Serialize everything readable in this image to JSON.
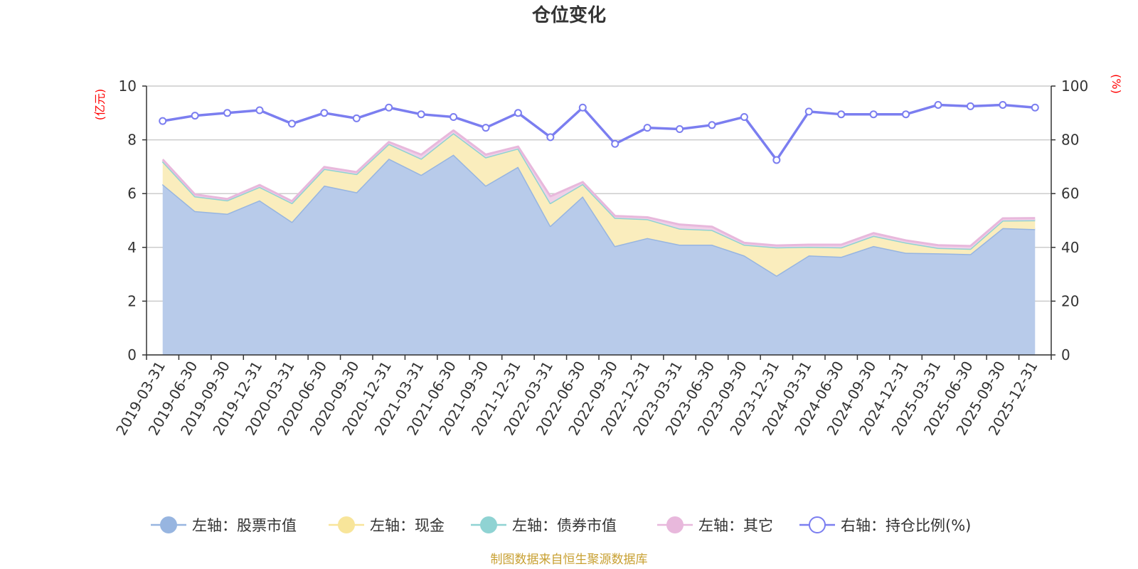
{
  "chart_data": {
    "type": "area",
    "title": "仓位变化",
    "source": "制图数据来自恒生聚源数据库",
    "left_axis": {
      "unit": "(亿元)",
      "min": 0,
      "max": 10,
      "ticks": [
        0,
        2,
        4,
        6,
        8,
        10
      ]
    },
    "right_axis": {
      "unit": "(%)",
      "min": 0,
      "max": 100,
      "ticks": [
        0,
        20,
        40,
        60,
        80,
        100
      ]
    },
    "categories": [
      "2019-03-31",
      "2019-06-30",
      "2019-09-30",
      "2019-12-31",
      "2020-03-31",
      "2020-06-30",
      "2020-09-30",
      "2020-12-31",
      "2021-03-31",
      "2021-06-30",
      "2021-09-30",
      "2021-12-31",
      "2022-03-31",
      "2022-06-30",
      "2022-09-30",
      "2022-12-31",
      "2023-03-31",
      "2023-06-30",
      "2023-09-30",
      "2023-12-31",
      "2024-03-31",
      "2024-06-30",
      "2024-09-30",
      "2024-12-31",
      "2025-03-31",
      "2025-06-30",
      "2025-09-30",
      "2025-12-31"
    ],
    "series": [
      {
        "name": "左轴：股票市值",
        "axis": "left",
        "type": "stacked-area",
        "color": "#97b5e0",
        "fill": "#b8cbea",
        "values": [
          6.35,
          5.35,
          5.25,
          5.75,
          4.95,
          6.3,
          6.05,
          7.3,
          6.7,
          7.45,
          6.3,
          7.0,
          4.8,
          5.9,
          4.05,
          4.35,
          4.1,
          4.1,
          3.7,
          2.95,
          3.7,
          3.65,
          4.05,
          3.8,
          3.78,
          3.75,
          4.72,
          4.68
        ]
      },
      {
        "name": "左轴：现金",
        "axis": "left",
        "type": "stacked-area",
        "color": "#f8e59a",
        "fill": "#faedbd",
        "values": [
          0.85,
          0.55,
          0.5,
          0.5,
          0.7,
          0.62,
          0.68,
          0.55,
          0.6,
          0.8,
          1.05,
          0.68,
          0.85,
          0.46,
          1.05,
          0.7,
          0.6,
          0.55,
          0.4,
          1.05,
          0.32,
          0.35,
          0.38,
          0.38,
          0.2,
          0.2,
          0.28,
          0.33
        ]
      },
      {
        "name": "左轴：债券市值",
        "axis": "left",
        "type": "stacked-area",
        "color": "#8fd3d3",
        "fill": "#b8e4e4",
        "values": [
          0,
          0,
          0,
          0,
          0,
          0,
          0,
          0,
          0,
          0,
          0,
          0,
          0,
          0,
          0,
          0,
          0,
          0,
          0,
          0,
          0,
          0,
          0,
          0,
          0,
          0,
          0,
          0
        ]
      },
      {
        "name": "左轴：其它",
        "axis": "left",
        "type": "stacked-area",
        "color": "#e8b8dc",
        "fill": "#f0d0e8",
        "values": [
          0.07,
          0.07,
          0.05,
          0.07,
          0.07,
          0.07,
          0.07,
          0.07,
          0.15,
          0.1,
          0.1,
          0.07,
          0.25,
          0.07,
          0.07,
          0.07,
          0.15,
          0.12,
          0.07,
          0.07,
          0.08,
          0.1,
          0.1,
          0.08,
          0.1,
          0.1,
          0.08,
          0.08
        ]
      },
      {
        "name": "右轴：持仓比例(%)",
        "axis": "right",
        "type": "line",
        "color": "#7b7ef0",
        "values": [
          87,
          89,
          90,
          91,
          86,
          90,
          88,
          92,
          89.5,
          88.5,
          84.5,
          90,
          81,
          92,
          78.5,
          84.5,
          84,
          85.5,
          88.5,
          72.5,
          90.5,
          89.5,
          89.5,
          89.5,
          93,
          92.5,
          93,
          92
        ]
      }
    ]
  }
}
